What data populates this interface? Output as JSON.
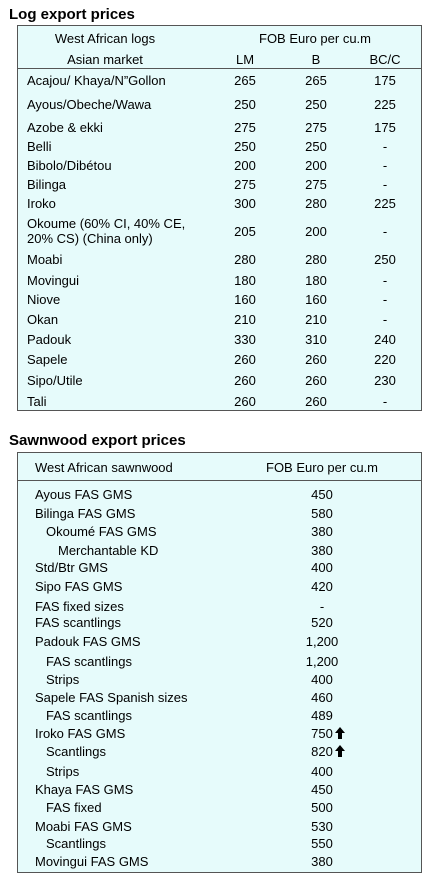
{
  "log_table": {
    "title": "Log export prices",
    "header": [
      "West African logs",
      "FOB Euro per cu.m"
    ],
    "subheader": [
      "Asian market",
      "LM",
      "B",
      "BC/C"
    ],
    "rows": [
      [
        "Acajou/ Khaya/N”Gollon",
        "265",
        "265",
        "175"
      ],
      [
        "Ayous/Obeche/Wawa",
        "250",
        "250",
        "225"
      ],
      [
        "Azobe & ekki",
        "275",
        "275",
        "175"
      ],
      [
        "Belli",
        "250",
        "250",
        "-"
      ],
      [
        "Bibolo/Dibétou",
        "200",
        "200",
        "-"
      ],
      [
        "Bilinga",
        "275",
        "275",
        "-"
      ],
      [
        "Iroko",
        "300",
        "280",
        "225"
      ],
      [
        [
          "Okoume (60% CI, 40% CE,",
          "20% CS) (China only)"
        ],
        "205",
        "200",
        "-"
      ],
      [
        "Moabi",
        "280",
        "280",
        "250"
      ],
      [
        "Movingui",
        "180",
        "180",
        "-"
      ],
      [
        "Niove",
        "160",
        "160",
        "-"
      ],
      [
        "Okan",
        "210",
        "210",
        "-"
      ],
      [
        "Padouk",
        "330",
        "310",
        "240"
      ],
      [
        "Sapele",
        "260",
        "260",
        "220"
      ],
      [
        "Sipo/Utile",
        "260",
        "260",
        "230"
      ],
      [
        "Tali",
        "260",
        "260",
        "-"
      ]
    ]
  },
  "sawn_table": {
    "title": "Sawnwood export prices",
    "header": [
      "West African sawnwood",
      "FOB Euro per cu.m"
    ],
    "rows": [
      [
        "Ayous FAS GMS",
        "450"
      ],
      [
        "Bilinga FAS GMS",
        "580"
      ],
      [
        "Okoumé FAS GMS",
        "380"
      ],
      [
        "Merchantable KD",
        "380"
      ],
      [
        "Std/Btr GMS",
        "400"
      ],
      [
        "Sipo FAS GMS",
        "420"
      ],
      [
        "FAS fixed sizes",
        "-"
      ],
      [
        "FAS scantlings",
        "520"
      ],
      [
        "Padouk FAS GMS",
        "1,200"
      ],
      [
        "FAS scantlings",
        "1,200"
      ],
      [
        "Strips",
        "400"
      ],
      [
        "Sapele FAS Spanish sizes",
        "460"
      ],
      [
        "FAS scantlings",
        "489"
      ],
      [
        "Iroko FAS GMS",
        "750"
      ],
      [
        "Scantlings",
        "820"
      ],
      [
        "Strips",
        "400"
      ],
      [
        "Khaya FAS GMS",
        "450"
      ],
      [
        "FAS fixed",
        "500"
      ],
      [
        "Moabi FAS GMS",
        "530"
      ],
      [
        "Scantlings",
        "550"
      ],
      [
        "Movingui FAS GMS",
        "380"
      ]
    ]
  }
}
